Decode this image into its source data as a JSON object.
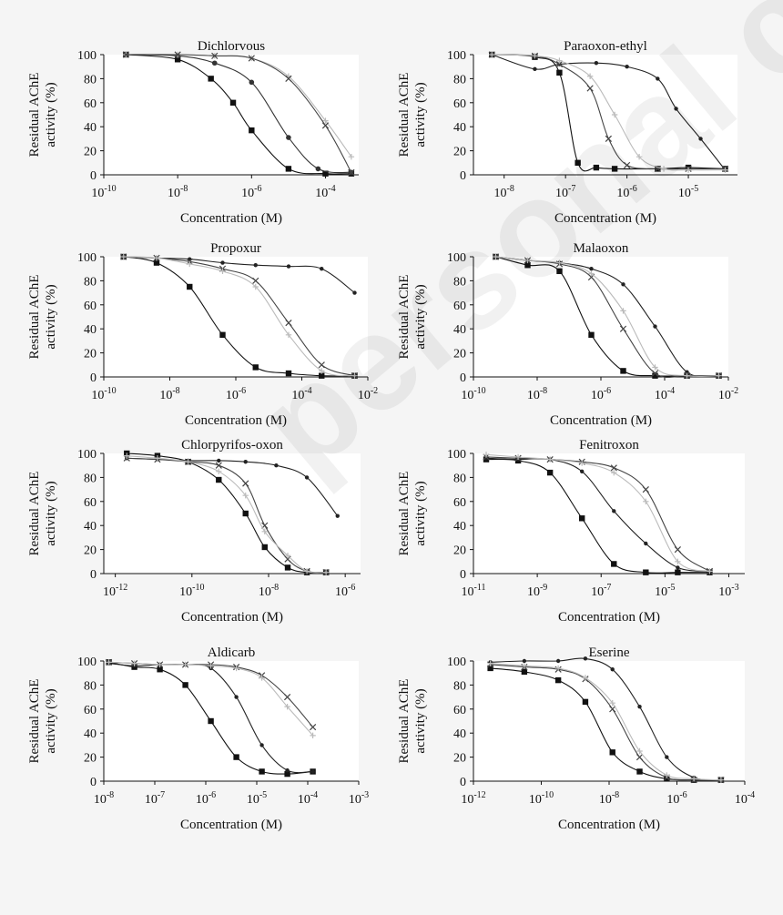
{
  "figure": {
    "watermark": "personal copy",
    "background": "#f5f5f5",
    "series_styles": [
      {
        "name": "series 1",
        "color": "#111111",
        "marker": "square"
      },
      {
        "name": "series 2",
        "color": "#333333",
        "marker": "circle"
      },
      {
        "name": "series 3",
        "color": "#bbbbbb",
        "marker": "plus"
      },
      {
        "name": "series 4",
        "color": "#444444",
        "marker": "x"
      },
      {
        "name": "series 5",
        "color": "#222222",
        "marker": "dot"
      }
    ]
  },
  "chart_data": [
    {
      "type": "line",
      "title": "Dichlorvous",
      "xlabel": "Concentration (M)",
      "ylabel": [
        "Residual AChE",
        "activity (%)"
      ],
      "x_scale": "log10",
      "xlim": [
        -10,
        -3.1
      ],
      "ylim": [
        0,
        100
      ],
      "xticks": [
        -10,
        -8,
        -6,
        -4
      ],
      "yticks": [
        0,
        20,
        40,
        60,
        80,
        100
      ],
      "series": [
        {
          "name": "series 1",
          "x": [
            -9.4,
            -8,
            -7.1,
            -6.5,
            -6.0,
            -5.0,
            -4.0,
            -3.3
          ],
          "y": [
            100,
            96,
            80,
            60,
            37,
            5,
            1,
            1
          ]
        },
        {
          "name": "series 2",
          "x": [
            -9.4,
            -8,
            -7,
            -6,
            -5.0,
            -4.2,
            -3.3
          ],
          "y": [
            100,
            99,
            93,
            77,
            31,
            5,
            2
          ]
        },
        {
          "name": "series 3",
          "x": [
            -9.4,
            -8,
            -7,
            -6,
            -5.0,
            -4.0,
            -3.3
          ],
          "y": [
            100,
            100,
            99,
            97,
            82,
            45,
            15
          ]
        },
        {
          "name": "series 4",
          "x": [
            -9.4,
            -8,
            -7,
            -6,
            -5.0,
            -4.0,
            -3.3
          ],
          "y": [
            100,
            100,
            99,
            97,
            80,
            41,
            2
          ]
        }
      ]
    },
    {
      "type": "line",
      "title": "Paraoxon-ethyl",
      "xlabel": "Concentration (M)",
      "ylabel": [
        "Residual AChE",
        "activity (%)"
      ],
      "x_scale": "log10",
      "xlim": [
        -8.5,
        -4.2
      ],
      "ylim": [
        0,
        100
      ],
      "xticks": [
        -8,
        -7,
        -6,
        -5
      ],
      "yticks": [
        0,
        20,
        40,
        60,
        80,
        100
      ],
      "series": [
        {
          "name": "series 1",
          "x": [
            -8.2,
            -7.5,
            -7.1,
            -6.8,
            -6.5,
            -6.2,
            -5.5,
            -5.0,
            -4.4
          ],
          "y": [
            100,
            98,
            85,
            10,
            6,
            5,
            5,
            6,
            5
          ]
        },
        {
          "name": "series 5",
          "x": [
            -8.2,
            -7.5,
            -7.1,
            -6.5,
            -6.0,
            -5.5,
            -5.2,
            -4.8,
            -4.4
          ],
          "y": [
            100,
            88,
            92,
            93,
            90,
            80,
            55,
            30,
            4
          ]
        },
        {
          "name": "series 4",
          "x": [
            -8.2,
            -7.5,
            -7.1,
            -6.6,
            -6.3,
            -6.0,
            -5.5,
            -5.0,
            -4.4
          ],
          "y": [
            100,
            99,
            92,
            72,
            30,
            8,
            5,
            5,
            5
          ]
        },
        {
          "name": "series 3",
          "x": [
            -8.2,
            -7.5,
            -7.1,
            -6.6,
            -6.2,
            -5.8,
            -5.4,
            -5.0,
            -4.4
          ],
          "y": [
            100,
            99,
            95,
            82,
            50,
            15,
            5,
            4,
            4
          ]
        }
      ]
    },
    {
      "type": "line",
      "title": "Propoxur",
      "xlabel": "Concentration (M)",
      "ylabel": [
        "Residual AChE",
        "activity (%)"
      ],
      "x_scale": "log10",
      "xlim": [
        -10,
        -2
      ],
      "ylim": [
        0,
        100
      ],
      "xticks": [
        -10,
        -8,
        -6,
        -4,
        -2
      ],
      "yticks": [
        0,
        20,
        40,
        60,
        80,
        100
      ],
      "series": [
        {
          "name": "series 1",
          "x": [
            -9.4,
            -8.4,
            -7.4,
            -6.4,
            -5.4,
            -4.4,
            -3.4,
            -2.4
          ],
          "y": [
            100,
            95,
            75,
            35,
            8,
            3,
            1,
            1
          ]
        },
        {
          "name": "series 5",
          "x": [
            -9.4,
            -8.4,
            -7.4,
            -6.4,
            -5.4,
            -4.4,
            -3.4,
            -2.4
          ],
          "y": [
            100,
            99,
            98,
            95,
            93,
            92,
            90,
            70
          ]
        },
        {
          "name": "series 4",
          "x": [
            -9.4,
            -8.4,
            -7.4,
            -6.4,
            -5.4,
            -4.4,
            -3.4,
            -2.4
          ],
          "y": [
            100,
            99,
            96,
            90,
            80,
            45,
            10,
            1
          ]
        },
        {
          "name": "series 3",
          "x": [
            -9.4,
            -8.4,
            -7.4,
            -6.4,
            -5.4,
            -4.4,
            -3.4,
            -2.4
          ],
          "y": [
            100,
            99,
            94,
            88,
            75,
            35,
            5,
            1
          ]
        }
      ]
    },
    {
      "type": "line",
      "title": "Malaoxon",
      "xlabel": "Concentration (M)",
      "ylabel": [
        "Residual AChE",
        "activity (%)"
      ],
      "x_scale": "log10",
      "xlim": [
        -10,
        -2
      ],
      "ylim": [
        0,
        100
      ],
      "xticks": [
        -10,
        -8,
        -6,
        -4,
        -2
      ],
      "yticks": [
        0,
        20,
        40,
        60,
        80,
        100
      ],
      "series": [
        {
          "name": "series 1",
          "x": [
            -9.3,
            -8.3,
            -7.3,
            -6.3,
            -5.3,
            -4.3,
            -3.3,
            -2.3
          ],
          "y": [
            100,
            93,
            88,
            35,
            5,
            1,
            1,
            1
          ]
        },
        {
          "name": "series 5",
          "x": [
            -9.3,
            -8.3,
            -7.3,
            -6.3,
            -5.3,
            -4.3,
            -3.3,
            -2.3
          ],
          "y": [
            100,
            97,
            95,
            90,
            77,
            42,
            4,
            1
          ]
        },
        {
          "name": "series 4",
          "x": [
            -9.3,
            -8.3,
            -7.3,
            -6.3,
            -5.3,
            -4.3,
            -3.3,
            -2.3
          ],
          "y": [
            100,
            97,
            94,
            83,
            40,
            3,
            1,
            1
          ]
        },
        {
          "name": "series 3",
          "x": [
            -9.3,
            -8.3,
            -7.3,
            -6.3,
            -5.3,
            -4.3,
            -3.3,
            -2.3
          ],
          "y": [
            100,
            97,
            95,
            86,
            55,
            8,
            1,
            1
          ]
        }
      ]
    },
    {
      "type": "line",
      "title": "Chlorpyrifos-oxon",
      "xlabel": "Concentration (M)",
      "ylabel": [
        "Residual AChE",
        "activity (%)"
      ],
      "x_scale": "log10",
      "xlim": [
        -12.3,
        -5.6
      ],
      "ylim": [
        0,
        100
      ],
      "xticks": [
        -12,
        -10,
        -8,
        -6
      ],
      "yticks": [
        0,
        20,
        40,
        60,
        80,
        100
      ],
      "series": [
        {
          "name": "series 1",
          "x": [
            -11.7,
            -10.9,
            -10.1,
            -9.3,
            -8.6,
            -8.1,
            -7.5,
            -7.0,
            -6.5
          ],
          "y": [
            100,
            98,
            93,
            78,
            50,
            22,
            5,
            1,
            1
          ]
        },
        {
          "name": "series 5",
          "x": [
            -11.7,
            -10.9,
            -10.1,
            -9.3,
            -8.6,
            -7.8,
            -7.0,
            -6.2
          ],
          "y": [
            96,
            95,
            94,
            94,
            93,
            90,
            80,
            48
          ]
        },
        {
          "name": "series 4",
          "x": [
            -11.7,
            -10.9,
            -10.1,
            -9.3,
            -8.6,
            -8.1,
            -7.5,
            -7.0,
            -6.5
          ],
          "y": [
            96,
            95,
            93,
            90,
            75,
            40,
            12,
            2,
            1
          ]
        },
        {
          "name": "series 3",
          "x": [
            -11.7,
            -10.9,
            -10.1,
            -9.3,
            -8.6,
            -8.1,
            -7.5,
            -7.0,
            -6.5
          ],
          "y": [
            98,
            96,
            93,
            85,
            65,
            35,
            15,
            2,
            1
          ]
        }
      ]
    },
    {
      "type": "line",
      "title": "Fenitroxon",
      "xlabel": "Concentration (M)",
      "ylabel": [
        "Residual AChE",
        "activity (%)"
      ],
      "x_scale": "log10",
      "xlim": [
        -11,
        -2.5
      ],
      "ylim": [
        0,
        100
      ],
      "xticks": [
        -11,
        -9,
        -7,
        -5,
        -3
      ],
      "yticks": [
        0,
        20,
        40,
        60,
        80,
        100
      ],
      "series": [
        {
          "name": "series 1",
          "x": [
            -10.6,
            -9.6,
            -8.6,
            -7.6,
            -6.6,
            -5.6,
            -4.6,
            -3.6
          ],
          "y": [
            95,
            94,
            84,
            46,
            8,
            1,
            1,
            1
          ]
        },
        {
          "name": "series 5",
          "x": [
            -10.6,
            -9.6,
            -8.6,
            -7.6,
            -6.6,
            -5.6,
            -4.6,
            -3.6
          ],
          "y": [
            96,
            95,
            95,
            85,
            52,
            25,
            5,
            2
          ]
        },
        {
          "name": "series 4",
          "x": [
            -10.6,
            -9.6,
            -8.6,
            -7.6,
            -6.6,
            -5.6,
            -4.6,
            -3.6
          ],
          "y": [
            97,
            96,
            95,
            93,
            88,
            70,
            20,
            2
          ]
        },
        {
          "name": "series 3",
          "x": [
            -10.6,
            -9.6,
            -8.6,
            -7.6,
            -6.6,
            -5.6,
            -4.6,
            -3.6
          ],
          "y": [
            99,
            97,
            95,
            92,
            84,
            60,
            10,
            2
          ]
        }
      ]
    },
    {
      "type": "line",
      "title": "Aldicarb",
      "xlabel": "Concentration (M)",
      "ylabel": [
        "Residual AChE",
        "activity (%)"
      ],
      "x_scale": "log10",
      "xlim": [
        -8,
        -3
      ],
      "ylim": [
        0,
        100
      ],
      "xticks": [
        -8,
        -7,
        -6,
        -5,
        -4,
        -3
      ],
      "yticks": [
        0,
        20,
        40,
        60,
        80,
        100
      ],
      "series": [
        {
          "name": "series 1",
          "x": [
            -7.9,
            -7.4,
            -6.9,
            -6.4,
            -5.9,
            -5.4,
            -4.9,
            -4.4,
            -3.9
          ],
          "y": [
            99,
            95,
            93,
            80,
            50,
            20,
            8,
            6,
            8
          ]
        },
        {
          "name": "series 5",
          "x": [
            -7.9,
            -7.4,
            -6.9,
            -6.4,
            -5.9,
            -5.4,
            -4.9,
            -4.4,
            -3.9
          ],
          "y": [
            98,
            96,
            97,
            97,
            94,
            70,
            30,
            9,
            8
          ]
        },
        {
          "name": "series 4",
          "x": [
            -7.9,
            -7.4,
            -6.9,
            -6.4,
            -5.9,
            -5.4,
            -4.9,
            -4.4,
            -3.9
          ],
          "y": [
            99,
            98,
            97,
            97,
            97,
            95,
            88,
            70,
            45
          ]
        },
        {
          "name": "series 3",
          "x": [
            -7.9,
            -7.4,
            -6.9,
            -6.4,
            -5.9,
            -5.4,
            -4.9,
            -4.4,
            -3.9
          ],
          "y": [
            99,
            98,
            97,
            97,
            96,
            94,
            86,
            62,
            38
          ]
        }
      ]
    },
    {
      "type": "line",
      "title": "Eserine",
      "xlabel": "Concentration (M)",
      "ylabel": [
        "Residual AChE",
        "activity (%)"
      ],
      "x_scale": "log10",
      "xlim": [
        -12,
        -4
      ],
      "ylim": [
        0,
        100
      ],
      "xticks": [
        -12,
        -10,
        -8,
        -6,
        -4
      ],
      "yticks": [
        0,
        20,
        40,
        60,
        80,
        100
      ],
      "series": [
        {
          "name": "series 1",
          "x": [
            -11.5,
            -10.5,
            -9.5,
            -8.7,
            -7.9,
            -7.1,
            -6.3,
            -5.5,
            -4.7
          ],
          "y": [
            94,
            91,
            84,
            66,
            24,
            8,
            2,
            1,
            1
          ]
        },
        {
          "name": "series 5",
          "x": [
            -11.5,
            -10.5,
            -9.5,
            -8.7,
            -7.9,
            -7.1,
            -6.3,
            -5.5,
            -4.7
          ],
          "y": [
            99,
            100,
            100,
            102,
            93,
            62,
            20,
            3,
            1
          ]
        },
        {
          "name": "series 4",
          "x": [
            -11.5,
            -10.5,
            -9.5,
            -8.7,
            -7.9,
            -7.1,
            -6.3,
            -5.5,
            -4.7
          ],
          "y": [
            97,
            95,
            93,
            85,
            60,
            20,
            3,
            1,
            1
          ]
        },
        {
          "name": "series 3",
          "x": [
            -11.5,
            -10.5,
            -9.5,
            -8.7,
            -7.9,
            -7.1,
            -6.3,
            -5.5,
            -4.7
          ],
          "y": [
            98,
            96,
            94,
            86,
            65,
            25,
            5,
            2,
            1
          ]
        }
      ]
    }
  ]
}
